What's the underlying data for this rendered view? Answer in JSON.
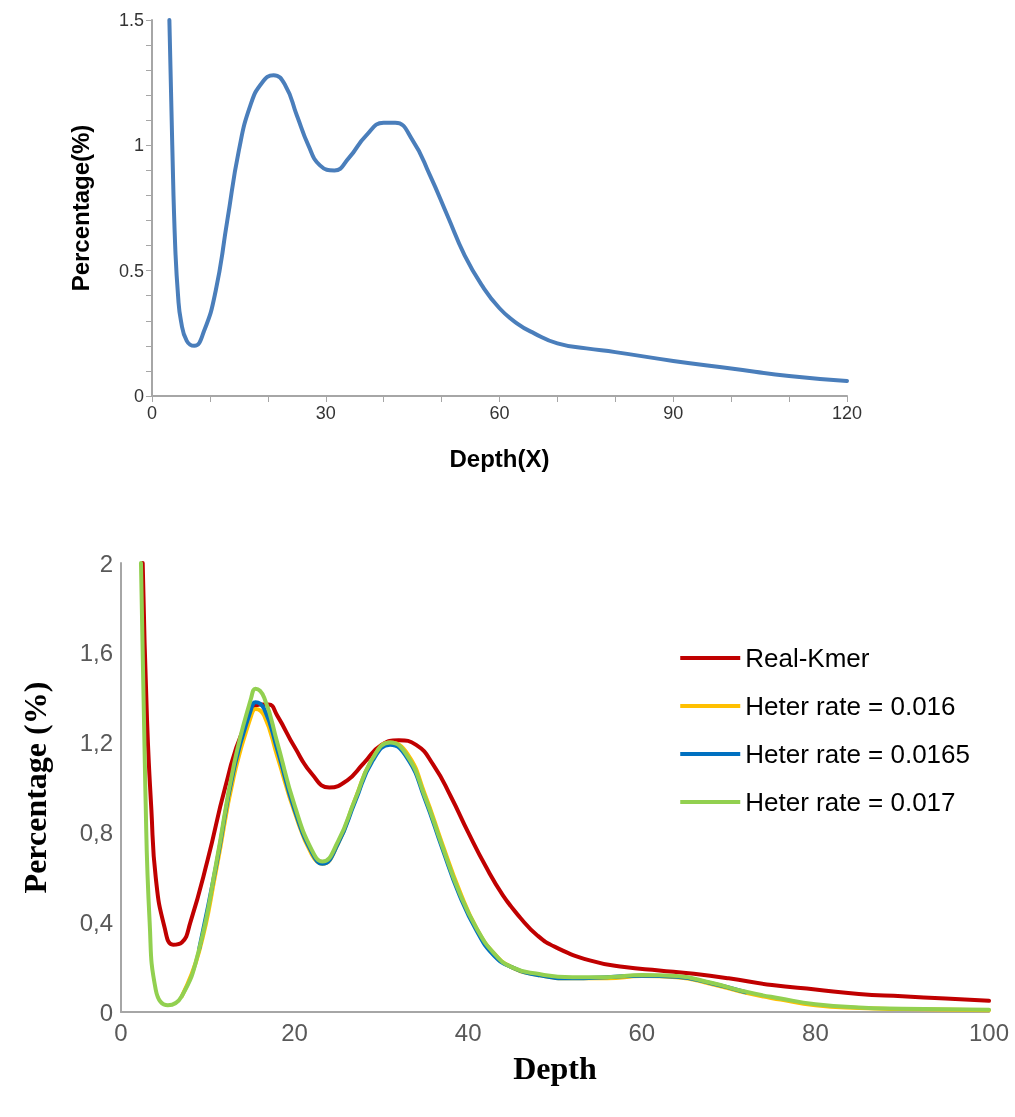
{
  "chart_data": [
    {
      "type": "line",
      "xlabel": "Depth(X)",
      "ylabel": "Percentage(%)",
      "xlim": [
        0,
        120
      ],
      "xticks": [
        0,
        {
          "value": 10,
          "label": null
        },
        {
          "value": 20,
          "label": null
        },
        30,
        {
          "value": 40,
          "label": null
        },
        {
          "value": 50,
          "label": null
        },
        60,
        {
          "value": 70,
          "label": null
        },
        {
          "value": 80,
          "label": null
        },
        90,
        {
          "value": 100,
          "label": null
        },
        {
          "value": 110,
          "label": null
        },
        120
      ],
      "ylim": [
        0,
        1.5
      ],
      "yticks": [
        0,
        {
          "value": 0.1,
          "label": null
        },
        {
          "value": 0.2,
          "label": null
        },
        {
          "value": 0.3,
          "label": null
        },
        {
          "value": 0.4,
          "label": null
        },
        0.5,
        {
          "value": 0.6,
          "label": null
        },
        {
          "value": 0.7,
          "label": null
        },
        {
          "value": 0.8,
          "label": null
        },
        {
          "value": 0.9,
          "label": null
        },
        1,
        {
          "value": 1.1,
          "label": null
        },
        {
          "value": 1.2,
          "label": null
        },
        {
          "value": 1.3,
          "label": null
        },
        {
          "value": 1.4,
          "label": null
        },
        1.5
      ],
      "grid": false,
      "legend": false,
      "series": [
        {
          "color": "#4a7ebb",
          "x": [
            3,
            3.5,
            4,
            4.5,
            5,
            6,
            7.3,
            9,
            11,
            13,
            15,
            17,
            19,
            21,
            23,
            25,
            27,
            29,
            31.5,
            34,
            37,
            40,
            42,
            45,
            48,
            51,
            54,
            57,
            60,
            63,
            66,
            70,
            75,
            80,
            90,
            100,
            110,
            120
          ],
          "values": [
            1.5,
            1.0,
            0.6,
            0.4,
            0.3,
            0.22,
            0.2,
            0.26,
            0.42,
            0.7,
            0.98,
            1.16,
            1.25,
            1.28,
            1.24,
            1.12,
            1.0,
            0.92,
            0.9,
            0.95,
            1.04,
            1.09,
            1.09,
            1.02,
            0.88,
            0.72,
            0.56,
            0.44,
            0.35,
            0.29,
            0.25,
            0.21,
            0.19,
            0.175,
            0.14,
            0.11,
            0.08,
            0.06
          ]
        }
      ]
    },
    {
      "type": "line",
      "xlabel": "Depth",
      "ylabel": "Percentage (%)",
      "xlim": [
        0,
        100
      ],
      "xticks": [
        0,
        20,
        40,
        60,
        80,
        100
      ],
      "ylim": [
        0,
        2
      ],
      "yticks": [
        0,
        {
          "value": 0.4,
          "label": "0,4"
        },
        {
          "value": 0.8,
          "label": "0,8"
        },
        {
          "value": 1.2,
          "label": "1,2"
        },
        {
          "value": 1.6,
          "label": "1,6"
        },
        2
      ],
      "grid": false,
      "legend": "right",
      "series": [
        {
          "name": "Real-Kmer",
          "color": "#c00000",
          "x": [
            2.5,
            3,
            3.5,
            4,
            5,
            6,
            7,
            8,
            10,
            12,
            14,
            16,
            17,
            18,
            20,
            22,
            24,
            26,
            28,
            30,
            32,
            34,
            36,
            38,
            40,
            42,
            44,
            46,
            48,
            50,
            54,
            58,
            62,
            66,
            70,
            75,
            80,
            85,
            90,
            95,
            100
          ],
          "values": [
            2,
            1.3,
            0.9,
            0.6,
            0.38,
            0.3,
            0.31,
            0.4,
            0.68,
            1.0,
            1.25,
            1.37,
            1.37,
            1.32,
            1.18,
            1.06,
            1.0,
            1.03,
            1.11,
            1.19,
            1.21,
            1.19,
            1.1,
            0.96,
            0.8,
            0.65,
            0.52,
            0.42,
            0.34,
            0.29,
            0.23,
            0.2,
            0.185,
            0.17,
            0.15,
            0.12,
            0.1,
            0.08,
            0.07,
            0.06,
            0.05
          ]
        },
        {
          "name": "Heter rate = 0.016",
          "color": "#ffc000",
          "x": [
            7,
            9,
            11,
            13,
            15,
            15.5,
            16.5,
            18,
            20,
            22,
            23.2,
            25,
            27,
            29,
            31,
            33,
            35,
            37,
            39,
            41,
            43,
            45,
            48,
            52,
            56,
            60,
            64,
            68,
            72,
            76,
            80,
            85,
            90,
            100
          ],
          "values": [
            0.07,
            0.27,
            0.64,
            1.05,
            1.32,
            1.35,
            1.32,
            1.14,
            0.89,
            0.7,
            0.66,
            0.75,
            0.95,
            1.13,
            1.2,
            1.15,
            0.97,
            0.75,
            0.54,
            0.37,
            0.26,
            0.2,
            0.165,
            0.15,
            0.15,
            0.16,
            0.155,
            0.125,
            0.085,
            0.055,
            0.03,
            0.018,
            0.013,
            0.008
          ]
        },
        {
          "name": "Heter rate = 0.0165",
          "color": "#0070c0",
          "x": [
            9,
            11,
            13,
            15,
            15.5,
            16.5,
            18,
            20,
            22,
            23.2,
            25,
            27,
            29,
            31,
            33,
            35,
            37,
            39,
            41,
            43,
            45,
            48,
            52,
            56,
            60,
            64,
            68,
            72
          ],
          "values": [
            0.28,
            0.66,
            1.08,
            1.35,
            1.38,
            1.35,
            1.17,
            0.9,
            0.71,
            0.66,
            0.75,
            0.94,
            1.12,
            1.19,
            1.13,
            0.95,
            0.73,
            0.52,
            0.36,
            0.25,
            0.2,
            0.165,
            0.15,
            0.155,
            0.162,
            0.157,
            0.128,
            0.088
          ]
        },
        {
          "name": "Heter rate = 0.017",
          "color": "#92d050",
          "x": [
            2.3,
            2.8,
            3.3,
            4,
            5.4,
            7,
            9,
            11,
            13,
            15,
            15.5,
            16.5,
            18,
            20,
            22,
            23.2,
            25,
            27,
            29,
            31,
            33,
            35,
            37,
            39,
            41,
            43,
            45,
            48,
            52,
            56,
            60,
            64,
            68,
            72,
            76,
            80,
            85,
            90,
            100
          ],
          "values": [
            2,
            1.0,
            0.4,
            0.1,
            0.03,
            0.07,
            0.28,
            0.67,
            1.1,
            1.4,
            1.44,
            1.4,
            1.2,
            0.92,
            0.72,
            0.67,
            0.76,
            0.95,
            1.13,
            1.2,
            1.14,
            0.96,
            0.74,
            0.53,
            0.37,
            0.26,
            0.2,
            0.17,
            0.155,
            0.155,
            0.165,
            0.16,
            0.13,
            0.09,
            0.06,
            0.035,
            0.02,
            0.015,
            0.01
          ]
        }
      ]
    }
  ]
}
